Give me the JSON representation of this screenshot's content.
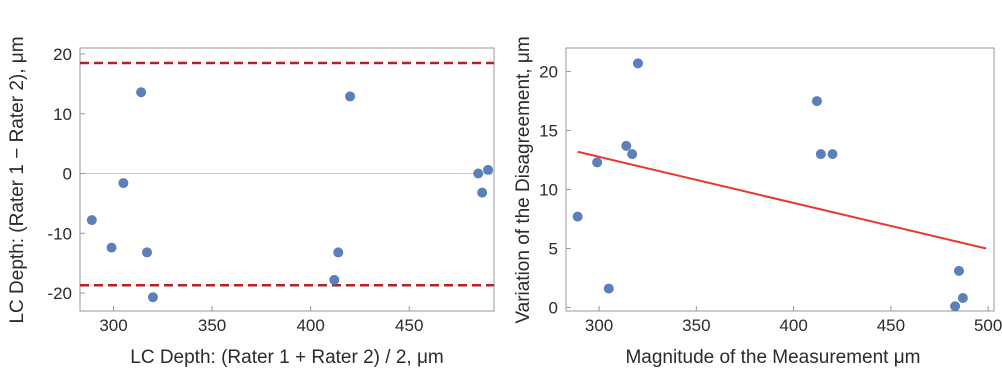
{
  "chart_data": [
    {
      "type": "scatter",
      "title": "",
      "xlabel": "LC Depth: (Rater 1 + Rater 2) / 2, μm",
      "ylabel": "LC Depth: (Rater 1 − Rater 2), μm",
      "xlim": [
        283,
        493
      ],
      "ylim": [
        -23,
        21
      ],
      "xticks": [
        300,
        350,
        400,
        450
      ],
      "yticks": [
        -20,
        -10,
        0,
        10,
        20
      ],
      "grid": false,
      "legend": "none",
      "points": [
        {
          "x": 289,
          "y": -7.8
        },
        {
          "x": 299,
          "y": -12.4
        },
        {
          "x": 305,
          "y": -1.6
        },
        {
          "x": 314,
          "y": 13.6
        },
        {
          "x": 317,
          "y": -13.2
        },
        {
          "x": 320,
          "y": -20.7
        },
        {
          "x": 412,
          "y": -17.8
        },
        {
          "x": 414,
          "y": -13.2
        },
        {
          "x": 420,
          "y": 12.9
        },
        {
          "x": 485,
          "y": 0.0
        },
        {
          "x": 487,
          "y": -3.2
        },
        {
          "x": 490,
          "y": 0.6
        }
      ],
      "reference_lines": [
        {
          "kind": "zero",
          "y": 0,
          "color": "#cccccc",
          "style": "solid"
        },
        {
          "kind": "upper-limit",
          "y": 18.5,
          "color": "#b22222",
          "style": "dashed"
        },
        {
          "kind": "lower-limit",
          "y": -18.7,
          "color": "#b22222",
          "style": "dashed"
        }
      ],
      "point_color": "#5b7fb8"
    },
    {
      "type": "scatter",
      "title": "",
      "xlabel": "Magnitude of the Measurement μm",
      "ylabel": "Variation of the Disagreement, μm",
      "xlim": [
        283,
        503
      ],
      "ylim": [
        -0.3,
        22
      ],
      "xticks": [
        300,
        350,
        400,
        450,
        500
      ],
      "yticks": [
        0,
        5,
        10,
        15,
        20
      ],
      "grid": false,
      "legend": "none",
      "points": [
        {
          "x": 289,
          "y": 7.7
        },
        {
          "x": 299,
          "y": 12.3
        },
        {
          "x": 305,
          "y": 1.6
        },
        {
          "x": 314,
          "y": 13.7
        },
        {
          "x": 317,
          "y": 13.0
        },
        {
          "x": 320,
          "y": 20.7
        },
        {
          "x": 412,
          "y": 17.5
        },
        {
          "x": 414,
          "y": 13.0
        },
        {
          "x": 420,
          "y": 13.0
        },
        {
          "x": 483,
          "y": 0.1
        },
        {
          "x": 485,
          "y": 3.1
        },
        {
          "x": 487,
          "y": 0.8
        }
      ],
      "fit_line": {
        "x": [
          289,
          499
        ],
        "y": [
          13.2,
          5.0
        ],
        "color": "#e8382e"
      },
      "point_color": "#5b7fb8"
    }
  ]
}
